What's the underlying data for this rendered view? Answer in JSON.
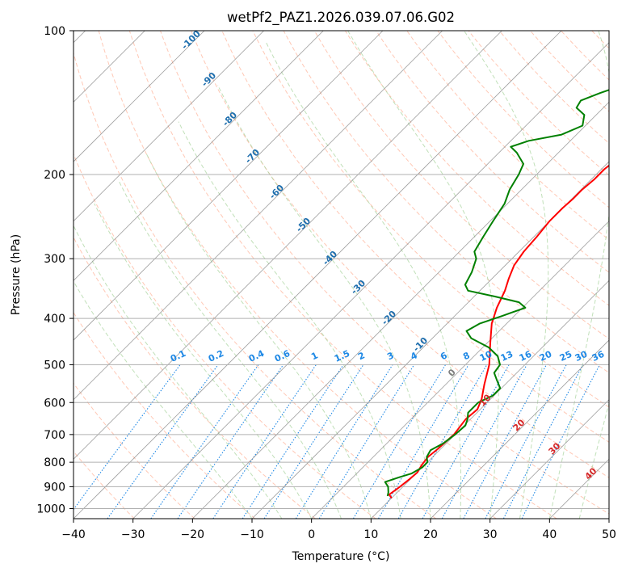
{
  "chart_data": {
    "type": "line",
    "title": "wetPf2_PAZ1.2026.039.07.06.G02",
    "xlabel": "Temperature (°C)",
    "ylabel": "Pressure (hPa)",
    "xlim": [
      -40,
      50
    ],
    "ylim": [
      1050,
      100
    ],
    "y_scale": "log",
    "grid": true,
    "x_ticks": [
      -40,
      -30,
      -20,
      -10,
      0,
      10,
      20,
      30,
      40,
      50
    ],
    "x_tick_labels": [
      "−40",
      "−30",
      "−20",
      "−10",
      "0",
      "10",
      "20",
      "30",
      "40",
      "50"
    ],
    "y_ticks": [
      100,
      200,
      300,
      400,
      500,
      600,
      700,
      800,
      900,
      1000
    ],
    "y_tick_labels": [
      "100",
      "200",
      "300",
      "400",
      "500",
      "600",
      "700",
      "800",
      "900",
      "1000"
    ],
    "series": [
      {
        "color": "#ff0000",
        "points": [
          [
            10,
            951
          ],
          [
            9,
            935
          ],
          [
            9.5,
            900
          ],
          [
            9.8,
            870
          ],
          [
            10,
            840
          ],
          [
            9.5,
            810
          ],
          [
            9.2,
            780
          ],
          [
            9.5,
            750
          ],
          [
            9.8,
            700
          ],
          [
            9.2,
            650
          ],
          [
            9.5,
            620
          ],
          [
            8.5,
            590
          ],
          [
            6.5,
            550
          ],
          [
            4,
            500
          ],
          [
            0.5,
            450
          ],
          [
            -2.5,
            410
          ],
          [
            -4.3,
            380
          ],
          [
            -5.8,
            350
          ],
          [
            -7.2,
            330
          ],
          [
            -8.5,
            310
          ],
          [
            -9.2,
            290
          ],
          [
            -9.5,
            270
          ],
          [
            -10,
            250
          ],
          [
            -10,
            235
          ],
          [
            -9.8,
            225
          ],
          [
            -9.8,
            215
          ],
          [
            -9.5,
            205
          ],
          [
            -9.5,
            195
          ],
          [
            -9,
            185
          ],
          [
            -8.5,
            175
          ],
          [
            -8.5,
            168
          ],
          [
            -8,
            160
          ],
          [
            -7.5,
            152
          ],
          [
            -7,
            145
          ],
          [
            -7,
            138
          ],
          [
            -7,
            130
          ],
          [
            -7,
            125
          ],
          [
            -6.5,
            118
          ],
          [
            -6,
            112
          ],
          [
            -6,
            106
          ],
          [
            -5.5,
            100
          ]
        ]
      },
      {
        "color": "#008000",
        "points": [
          [
            9,
            942
          ],
          [
            8.5,
            925
          ],
          [
            7.5,
            900
          ],
          [
            6.2,
            880
          ],
          [
            7.8,
            860
          ],
          [
            9.2,
            845
          ],
          [
            10,
            820
          ],
          [
            10,
            800
          ],
          [
            9,
            780
          ],
          [
            8.5,
            755
          ],
          [
            9.5,
            730
          ],
          [
            10,
            700
          ],
          [
            10.2,
            670
          ],
          [
            9.5,
            650
          ],
          [
            8.5,
            630
          ],
          [
            8.5,
            600
          ],
          [
            9.8,
            580
          ],
          [
            9.8,
            560
          ],
          [
            8,
            540
          ],
          [
            6.2,
            520
          ],
          [
            5.8,
            500
          ],
          [
            4,
            480
          ],
          [
            1,
            460
          ],
          [
            -3.5,
            440
          ],
          [
            -5.5,
            425
          ],
          [
            -4.5,
            410
          ],
          [
            -2,
            395
          ],
          [
            0.5,
            380
          ],
          [
            -1.5,
            370
          ],
          [
            -6.5,
            360
          ],
          [
            -12,
            350
          ],
          [
            -13.5,
            340
          ],
          [
            -14.5,
            320
          ],
          [
            -16,
            300
          ],
          [
            -17.5,
            290
          ],
          [
            -18.5,
            270
          ],
          [
            -19.5,
            250
          ],
          [
            -20.5,
            230
          ],
          [
            -22,
            215
          ],
          [
            -23,
            200
          ],
          [
            -24,
            190
          ],
          [
            -27,
            180
          ],
          [
            -29,
            175
          ],
          [
            -27,
            170
          ],
          [
            -22.5,
            165
          ],
          [
            -20.5,
            158
          ],
          [
            -22,
            150
          ],
          [
            -24.5,
            145
          ],
          [
            -25,
            140
          ],
          [
            -23,
            135
          ],
          [
            -20.5,
            130
          ],
          [
            -20.5,
            125
          ],
          [
            -20.5,
            118
          ],
          [
            -20,
            112
          ],
          [
            -18.5,
            106
          ],
          [
            -18.5,
            100
          ]
        ]
      }
    ],
    "dry_adiabat_labels": [
      "0",
      "10",
      "20",
      "30",
      "40"
    ],
    "dry_adiabat_label_values": [
      0,
      10,
      20,
      30,
      40
    ],
    "moist_adiabat_labels": [
      "-100",
      "-90",
      "-80",
      "-70",
      "-60",
      "-50",
      "-40",
      "-30",
      "-20",
      "-10"
    ],
    "moist_adiabat_label_values": [
      -100,
      -90,
      -80,
      -70,
      -60,
      -50,
      -40,
      -30,
      -20,
      -10
    ],
    "mixing_ratio_labels": [
      "0.1",
      "0.2",
      "0.4",
      "0.6",
      "1",
      "1.5",
      "2",
      "3",
      "4",
      "6",
      "8",
      "10",
      "13",
      "16",
      "20",
      "25",
      "30",
      "36"
    ],
    "mixing_ratio_values": [
      0.1,
      0.2,
      0.4,
      0.6,
      1,
      1.5,
      2,
      3,
      4,
      6,
      8,
      10,
      13,
      16,
      20,
      25,
      30,
      36
    ],
    "colors": {
      "temperature": "#ff0000",
      "dewpoint": "#008000",
      "dry_adiabat": "#ff9a78",
      "moist_adiabat": "#a6d39b",
      "mixing_ratio": "#1e88e5",
      "mixing_label": "#1e88e5",
      "moist_label": "#1f6fae",
      "dry_label": "#d62728",
      "zero_label": "#7f7f7f",
      "isotherm": "#7f7f7f",
      "isobar": "#b0b0b0",
      "frame": "#000000"
    }
  }
}
